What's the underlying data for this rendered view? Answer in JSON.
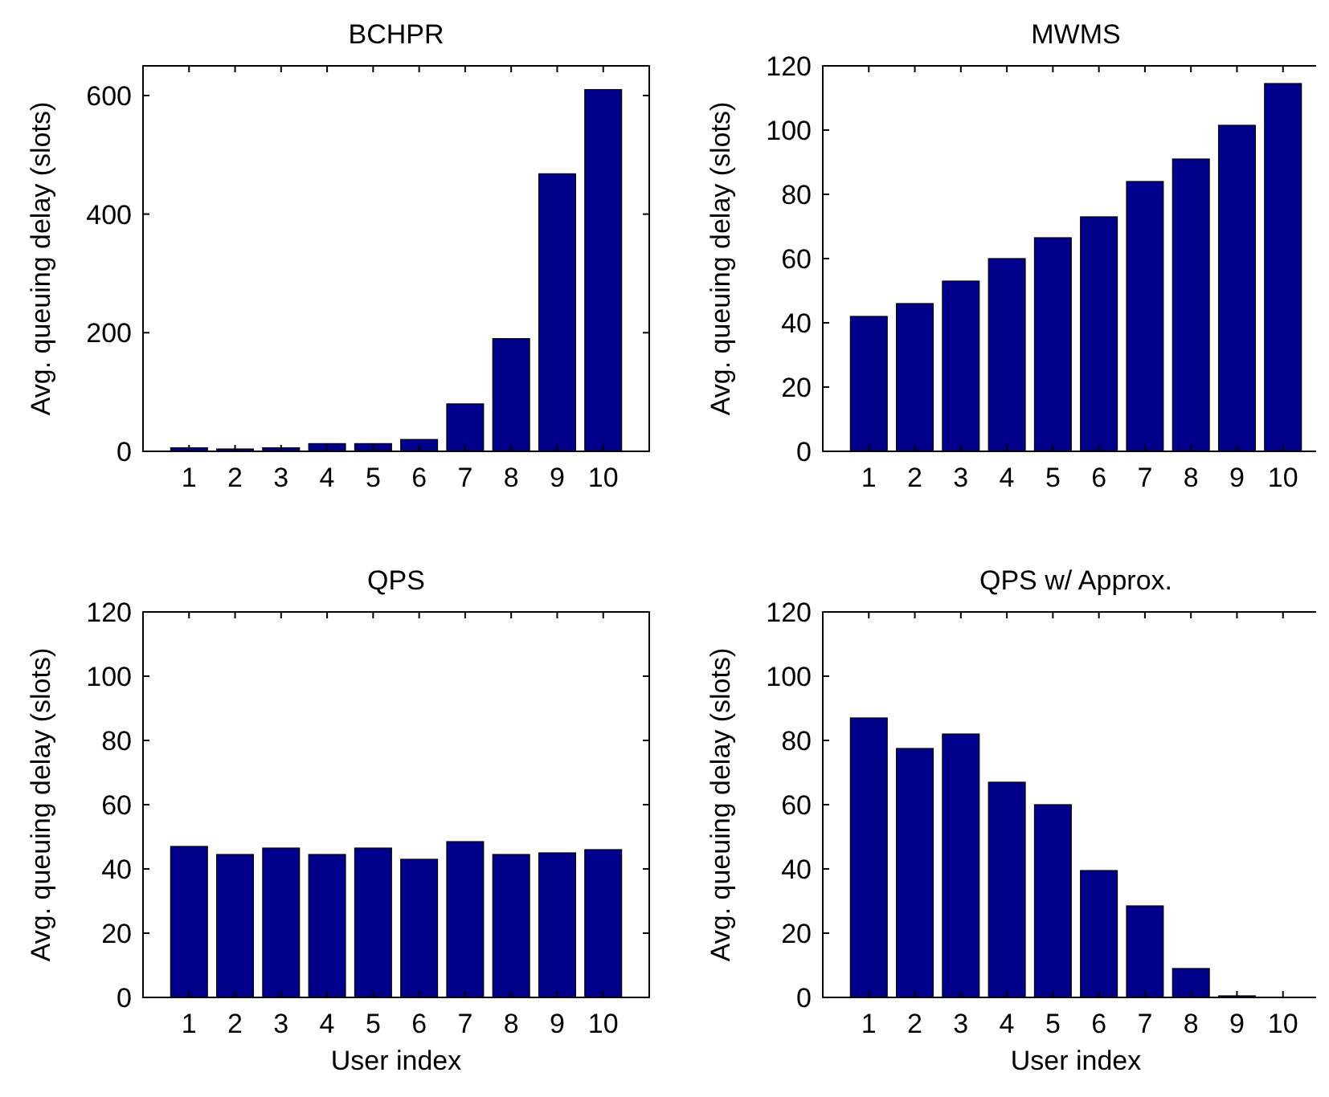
{
  "chart_data": [
    {
      "type": "bar",
      "title": "BCHPR",
      "ylabel": "Avg. queuing delay (slots)",
      "categories": [
        "1",
        "2",
        "3",
        "4",
        "5",
        "6",
        "7",
        "8",
        "9",
        "10"
      ],
      "values": [
        6,
        4,
        6,
        13,
        13,
        20,
        80,
        190,
        468,
        610
      ],
      "color": "#00008b",
      "ylim": [
        0,
        650
      ],
      "yticks": [
        0,
        200,
        400,
        600
      ],
      "grid": false
    },
    {
      "type": "bar",
      "title": "MWMS",
      "ylabel": "Avg. queuing delay (slots)",
      "categories": [
        "1",
        "2",
        "3",
        "4",
        "5",
        "6",
        "7",
        "8",
        "9",
        "10"
      ],
      "values": [
        42,
        46,
        53,
        60,
        66.5,
        73,
        84,
        91,
        101.5,
        114.5
      ],
      "color": "#00008b",
      "ylim": [
        0,
        120
      ],
      "yticks": [
        0,
        20,
        40,
        60,
        80,
        100,
        120
      ],
      "grid": false
    },
    {
      "type": "bar",
      "title": "QPS",
      "xlabel": "User index",
      "ylabel": "Avg. queuing delay (slots)",
      "categories": [
        "1",
        "2",
        "3",
        "4",
        "5",
        "6",
        "7",
        "8",
        "9",
        "10"
      ],
      "values": [
        47,
        44.5,
        46.5,
        44.5,
        46.5,
        43,
        48.5,
        44.5,
        45,
        46
      ],
      "color": "#00008b",
      "ylim": [
        0,
        120
      ],
      "yticks": [
        0,
        20,
        40,
        60,
        80,
        100,
        120
      ],
      "grid": false
    },
    {
      "type": "bar",
      "title": "QPS w/ Approx.",
      "xlabel": "User index",
      "ylabel": "Avg. queuing delay (slots)",
      "categories": [
        "1",
        "2",
        "3",
        "4",
        "5",
        "6",
        "7",
        "8",
        "9",
        "10"
      ],
      "values": [
        87,
        77.5,
        82,
        67,
        60,
        39.5,
        28.5,
        9,
        0.5,
        null
      ],
      "color": "#00008b",
      "ylim": [
        0,
        120
      ],
      "yticks": [
        0,
        20,
        40,
        60,
        80,
        100,
        120
      ],
      "grid": false
    }
  ]
}
